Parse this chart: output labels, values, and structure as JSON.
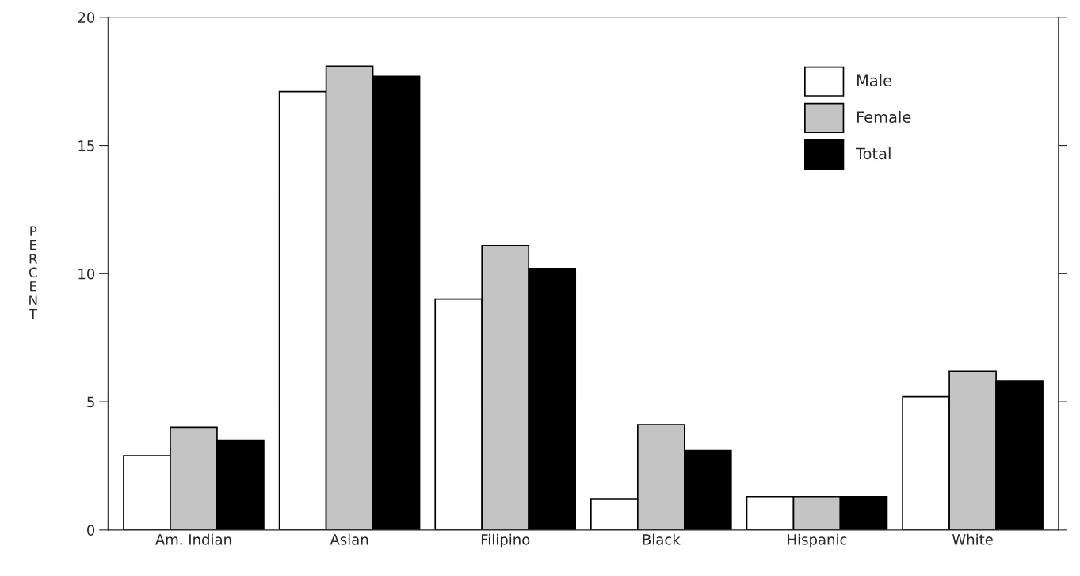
{
  "chart_data": {
    "type": "bar",
    "ylabel": "PERCENT",
    "categories": [
      "Am. Indian",
      "Asian",
      "Filipino",
      "Black",
      "Hispanic",
      "White"
    ],
    "series": [
      {
        "name": "Male",
        "color": "#ffffff",
        "values": [
          2.9,
          17.1,
          9.0,
          1.2,
          1.3,
          5.2
        ]
      },
      {
        "name": "Female",
        "color": "#c4c4c4",
        "values": [
          4.0,
          18.1,
          11.1,
          4.1,
          1.3,
          6.2
        ]
      },
      {
        "name": "Total",
        "color": "#000000",
        "values": [
          3.5,
          17.7,
          10.2,
          3.1,
          1.3,
          5.8
        ]
      }
    ],
    "ylim": [
      0,
      20
    ],
    "yticks": [
      0,
      5,
      10,
      15,
      20
    ],
    "grid": false,
    "legend": "top right"
  }
}
